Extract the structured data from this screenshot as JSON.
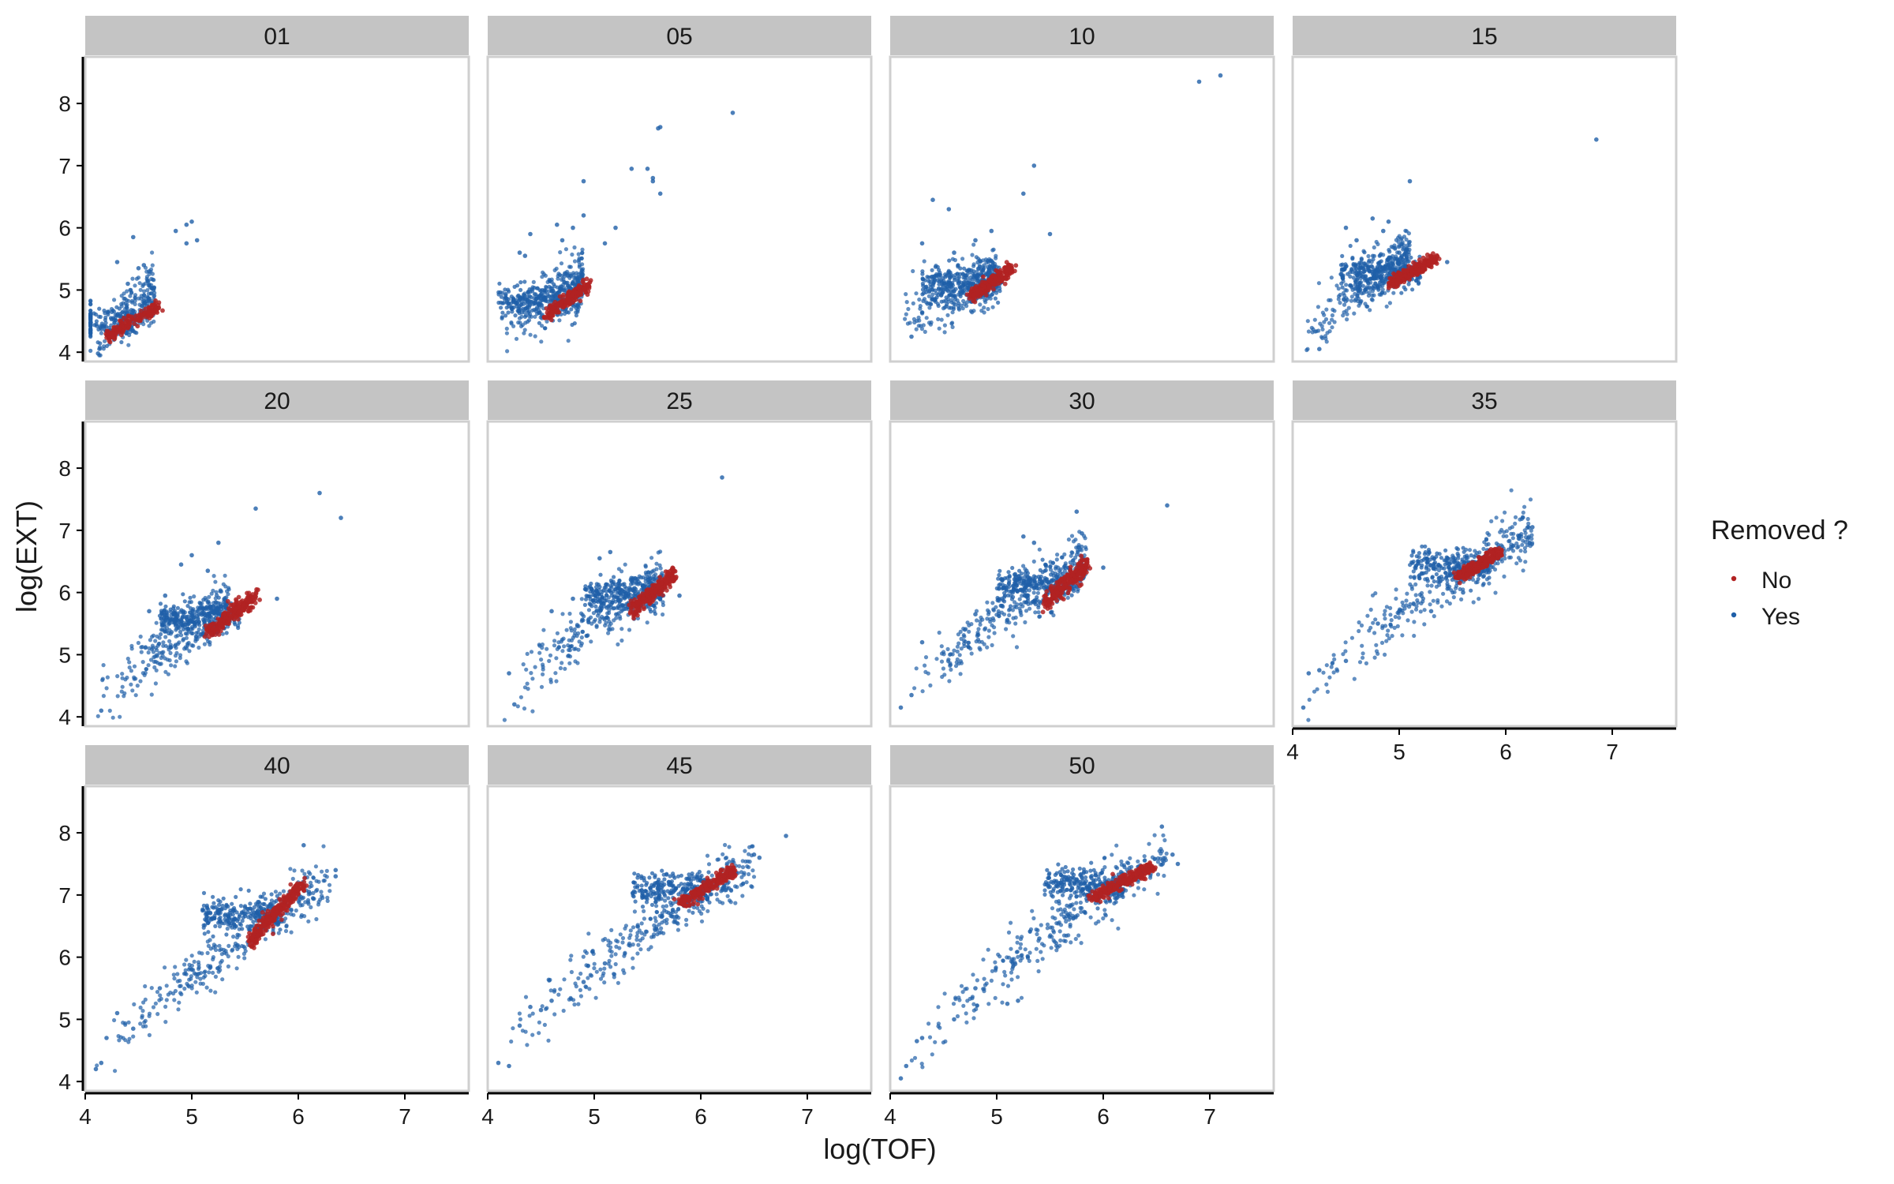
{
  "chart_data": {
    "type": "scatter",
    "facet_labels": [
      "01",
      "05",
      "10",
      "15",
      "20",
      "25",
      "30",
      "35",
      "40",
      "45",
      "50"
    ],
    "xlabel": "log(TOF)",
    "ylabel": "log(EXT)",
    "xlim": [
      4.0,
      7.6
    ],
    "ylim": [
      3.85,
      8.75
    ],
    "x_ticks": [
      "4",
      "5",
      "6",
      "7"
    ],
    "y_ticks": [
      "4",
      "5",
      "6",
      "7",
      "8"
    ],
    "grid": false,
    "legend": {
      "title": "Removed ?",
      "position": "right",
      "entries": [
        {
          "label": "No",
          "color": "#B22222"
        },
        {
          "label": "Yes",
          "color": "#1F5FA8"
        }
      ]
    },
    "panels": [
      {
        "label": "01",
        "no": {
          "x": [
            4.2,
            4.7
          ],
          "y": [
            4.25,
            4.75
          ],
          "n": 170,
          "spread": 0.05
        },
        "yes_core": {
          "x": [
            4.1,
            4.65
          ],
          "y": [
            4.0,
            5.0
          ],
          "n": 210
        },
        "yes_outliers": [
          [
            4.45,
            5.85
          ],
          [
            4.85,
            5.95
          ],
          [
            4.95,
            6.05
          ],
          [
            5.05,
            5.8
          ],
          [
            4.95,
            5.75
          ],
          [
            5.0,
            6.1
          ],
          [
            4.55,
            5.4
          ],
          [
            4.5,
            5.35
          ],
          [
            4.3,
            5.45
          ],
          [
            4.12,
            3.98
          ],
          [
            4.4,
            5.1
          ],
          [
            4.6,
            5.3
          ]
        ]
      },
      {
        "label": "05",
        "no": {
          "x": [
            4.55,
            4.95
          ],
          "y": [
            4.6,
            5.1
          ],
          "n": 200,
          "spread": 0.05
        },
        "yes_core": {
          "x": [
            4.15,
            4.9
          ],
          "y": [
            4.3,
            5.2
          ],
          "n": 300
        },
        "yes_outliers": [
          [
            5.6,
            7.6
          ],
          [
            5.62,
            7.62
          ],
          [
            6.3,
            7.85
          ],
          [
            5.55,
            6.8
          ],
          [
            5.55,
            6.75
          ],
          [
            5.5,
            6.95
          ],
          [
            5.62,
            6.55
          ],
          [
            5.35,
            6.95
          ],
          [
            4.9,
            6.75
          ],
          [
            4.8,
            6.0
          ],
          [
            4.65,
            6.05
          ],
          [
            4.9,
            6.2
          ],
          [
            5.2,
            6.0
          ],
          [
            4.7,
            5.8
          ],
          [
            4.4,
            5.9
          ],
          [
            4.35,
            5.55
          ],
          [
            4.3,
            5.6
          ],
          [
            5.1,
            5.75
          ]
        ]
      },
      {
        "label": "10",
        "no": {
          "x": [
            4.75,
            5.15
          ],
          "y": [
            4.9,
            5.35
          ],
          "n": 220,
          "spread": 0.05
        },
        "yes_core": {
          "x": [
            4.1,
            5.0
          ],
          "y": [
            4.4,
            5.3
          ],
          "n": 320
        },
        "yes_outliers": [
          [
            7.1,
            8.45
          ],
          [
            6.9,
            8.35
          ],
          [
            5.35,
            7.0
          ],
          [
            5.25,
            6.55
          ],
          [
            4.95,
            5.95
          ],
          [
            5.5,
            5.9
          ],
          [
            4.4,
            6.45
          ],
          [
            4.55,
            6.3
          ],
          [
            4.3,
            5.75
          ],
          [
            4.2,
            4.25
          ],
          [
            4.8,
            5.8
          ],
          [
            4.6,
            5.6
          ]
        ]
      },
      {
        "label": "15",
        "no": {
          "x": [
            4.9,
            5.35
          ],
          "y": [
            5.1,
            5.5
          ],
          "n": 230,
          "spread": 0.05
        },
        "yes_core": {
          "x": [
            4.1,
            5.1
          ],
          "y": [
            4.1,
            5.6
          ],
          "n": 330
        },
        "yes_outliers": [
          [
            6.85,
            7.42
          ],
          [
            5.1,
            6.75
          ],
          [
            4.9,
            6.1
          ],
          [
            4.85,
            5.95
          ],
          [
            4.5,
            6.0
          ],
          [
            4.75,
            6.15
          ],
          [
            5.0,
            5.6
          ],
          [
            5.45,
            5.45
          ],
          [
            4.25,
            4.05
          ],
          [
            4.6,
            5.8
          ]
        ]
      },
      {
        "label": "20",
        "no": {
          "x": [
            5.15,
            5.6
          ],
          "y": [
            5.35,
            5.95
          ],
          "n": 240,
          "spread": 0.06
        },
        "yes_core": {
          "x": [
            4.1,
            5.35
          ],
          "y": [
            4.1,
            5.8
          ],
          "n": 330
        },
        "yes_outliers": [
          [
            6.2,
            7.6
          ],
          [
            6.4,
            7.2
          ],
          [
            5.6,
            7.35
          ],
          [
            5.25,
            6.8
          ],
          [
            5.0,
            6.6
          ],
          [
            4.9,
            6.45
          ],
          [
            5.15,
            6.35
          ],
          [
            5.8,
            5.9
          ],
          [
            4.15,
            4.1
          ],
          [
            4.75,
            5.95
          ],
          [
            4.6,
            5.7
          ]
        ]
      },
      {
        "label": "25",
        "no": {
          "x": [
            5.35,
            5.75
          ],
          "y": [
            5.7,
            6.3
          ],
          "n": 240,
          "spread": 0.06
        },
        "yes_core": {
          "x": [
            4.15,
            5.65
          ],
          "y": [
            4.2,
            6.2
          ],
          "n": 320
        },
        "yes_outliers": [
          [
            6.2,
            7.85
          ],
          [
            5.15,
            6.65
          ],
          [
            5.05,
            6.55
          ],
          [
            5.8,
            5.95
          ],
          [
            4.25,
            4.2
          ],
          [
            4.2,
            4.7
          ],
          [
            4.6,
            5.7
          ],
          [
            4.8,
            5.9
          ]
        ]
      },
      {
        "label": "30",
        "no": {
          "x": [
            5.45,
            5.85
          ],
          "y": [
            5.85,
            6.45
          ],
          "n": 250,
          "spread": 0.07
        },
        "yes_core": {
          "x": [
            4.1,
            5.85
          ],
          "y": [
            4.1,
            6.5
          ],
          "n": 330
        },
        "yes_outliers": [
          [
            6.6,
            7.4
          ],
          [
            5.75,
            7.3
          ],
          [
            5.25,
            6.9
          ],
          [
            5.35,
            6.8
          ],
          [
            5.8,
            6.95
          ],
          [
            6.0,
            6.4
          ],
          [
            4.1,
            4.15
          ],
          [
            4.2,
            4.35
          ],
          [
            4.3,
            5.2
          ],
          [
            4.8,
            5.65
          ]
        ]
      },
      {
        "label": "35",
        "no": {
          "x": [
            5.55,
            5.95
          ],
          "y": [
            6.25,
            6.65
          ],
          "n": 240,
          "spread": 0.05
        },
        "yes_core": {
          "x": [
            4.1,
            6.25
          ],
          "y": [
            4.15,
            7.0
          ],
          "n": 320
        },
        "yes_outliers": [
          [
            6.25,
            7.05
          ],
          [
            4.1,
            4.15
          ],
          [
            4.15,
            4.7
          ],
          [
            4.25,
            4.75
          ],
          [
            4.5,
            4.9
          ],
          [
            4.8,
            5.5
          ],
          [
            5.0,
            5.7
          ],
          [
            5.3,
            5.7
          ],
          [
            5.6,
            6.0
          ]
        ]
      },
      {
        "label": "40",
        "no": {
          "x": [
            5.55,
            6.05
          ],
          "y": [
            6.25,
            7.2
          ],
          "n": 260,
          "spread": 0.06
        },
        "yes_core": {
          "x": [
            4.1,
            6.3
          ],
          "y": [
            4.2,
            7.25
          ],
          "n": 330
        },
        "yes_outliers": [
          [
            6.05,
            7.8
          ],
          [
            6.35,
            7.4
          ],
          [
            6.35,
            7.3
          ],
          [
            6.1,
            7.05
          ],
          [
            4.1,
            4.2
          ],
          [
            4.15,
            4.3
          ],
          [
            4.2,
            4.7
          ],
          [
            4.3,
            5.1
          ],
          [
            4.45,
            4.85
          ],
          [
            4.7,
            5.5
          ],
          [
            5.0,
            5.8
          ]
        ]
      },
      {
        "label": "45",
        "no": {
          "x": [
            5.8,
            6.3
          ],
          "y": [
            6.85,
            7.4
          ],
          "n": 250,
          "spread": 0.05
        },
        "yes_core": {
          "x": [
            4.1,
            6.5
          ],
          "y": [
            4.25,
            7.55
          ],
          "n": 330
        },
        "yes_outliers": [
          [
            6.8,
            7.95
          ],
          [
            6.5,
            7.65
          ],
          [
            6.55,
            7.6
          ],
          [
            4.1,
            4.3
          ],
          [
            4.2,
            4.25
          ],
          [
            4.3,
            4.9
          ],
          [
            4.4,
            5.2
          ],
          [
            4.5,
            5.15
          ],
          [
            4.6,
            5.3
          ],
          [
            4.9,
            5.6
          ],
          [
            5.1,
            5.9
          ]
        ]
      },
      {
        "label": "50",
        "no": {
          "x": [
            5.9,
            6.45
          ],
          "y": [
            6.95,
            7.45
          ],
          "n": 240,
          "spread": 0.05
        },
        "yes_core": {
          "x": [
            4.1,
            6.6
          ],
          "y": [
            4.1,
            7.7
          ],
          "n": 330
        },
        "yes_outliers": [
          [
            6.55,
            8.1
          ],
          [
            6.65,
            7.65
          ],
          [
            6.7,
            7.5
          ],
          [
            4.1,
            4.05
          ],
          [
            4.15,
            4.25
          ],
          [
            4.25,
            4.65
          ],
          [
            4.3,
            4.7
          ],
          [
            4.6,
            5.0
          ],
          [
            4.8,
            5.5
          ],
          [
            5.1,
            5.25
          ],
          [
            5.2,
            5.3
          ],
          [
            5.4,
            6.3
          ]
        ]
      }
    ]
  }
}
